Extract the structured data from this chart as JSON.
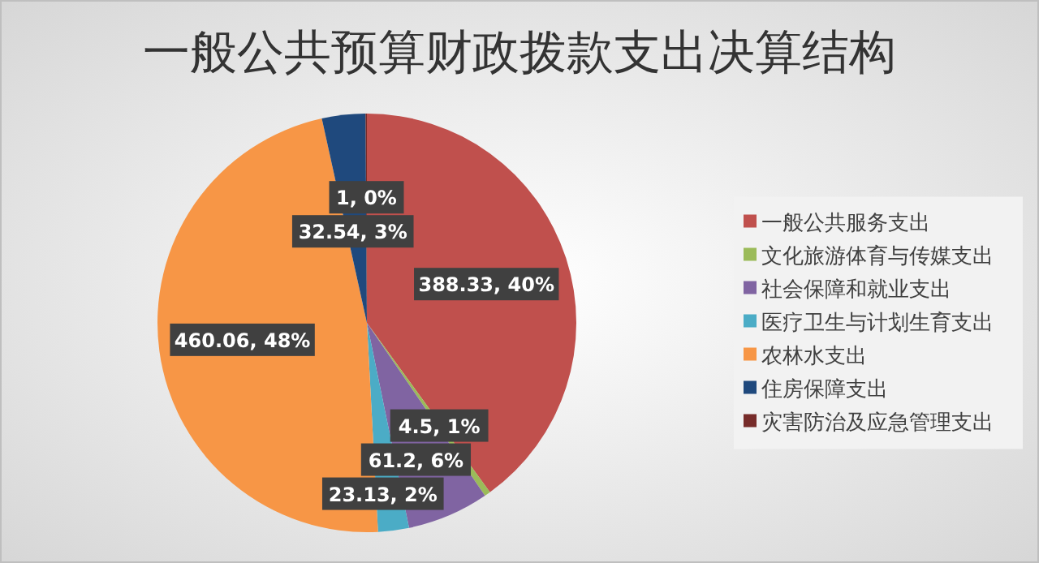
{
  "chart_data": {
    "type": "pie",
    "title": "一般公共预算财政拨款支出决算结构",
    "categories": [
      "一般公共服务支出",
      "文化旅游体育与传媒支出",
      "社会保障和就业支出",
      "医疗卫生与计划生育支出",
      "农林水支出",
      "住房保障支出",
      "灾害防治及应急管理支出"
    ],
    "values": [
      388.33,
      4.5,
      61.2,
      23.13,
      460.06,
      32.54,
      1
    ],
    "value_labels": [
      "388.33, 40%",
      "4.5, 1%",
      "61.2, 6%",
      "23.13, 2%",
      "460.06, 48%",
      "32.54, 3%",
      "1, 0%"
    ],
    "colors": [
      "#c0504d",
      "#9bbb59",
      "#8064a2",
      "#4bacc6",
      "#f79646",
      "#1f497d",
      "#772c2a"
    ],
    "legend": "right"
  }
}
